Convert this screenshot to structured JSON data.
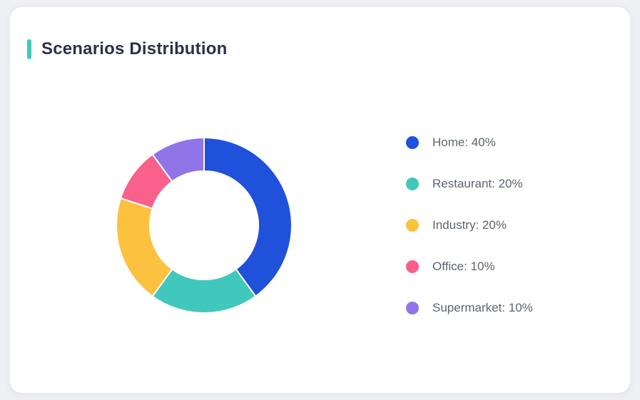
{
  "page": {
    "background": "#eef0f3"
  },
  "card": {
    "background": "#ffffff",
    "border_color": "#e9ebef"
  },
  "header": {
    "title": "Scenarios Distribution",
    "accent_color": "#41c8bd",
    "title_color": "#2b3245"
  },
  "chart_data": {
    "type": "pie",
    "donut": true,
    "title": "Scenarios Distribution",
    "categories": [
      "Home",
      "Restaurant",
      "Industry",
      "Office",
      "Supermarket"
    ],
    "values": [
      40,
      20,
      20,
      10,
      10
    ],
    "unit": "%",
    "colors": [
      "#2051db",
      "#41c8bd",
      "#fcc13e",
      "#f9608a",
      "#8f75e8"
    ],
    "start_angle": "top",
    "direction": "clockwise",
    "inner_radius_ratio": 0.62,
    "segment_gap_color": "#ffffff",
    "legend_position": "right",
    "legend": [
      {
        "label": "Home: 40%",
        "color": "#2051db"
      },
      {
        "label": "Restaurant: 20%",
        "color": "#41c8bd"
      },
      {
        "label": "Industry: 20%",
        "color": "#fcc13e"
      },
      {
        "label": "Office: 10%",
        "color": "#f9608a"
      },
      {
        "label": "Supermarket: 10%",
        "color": "#8f75e8"
      }
    ]
  }
}
